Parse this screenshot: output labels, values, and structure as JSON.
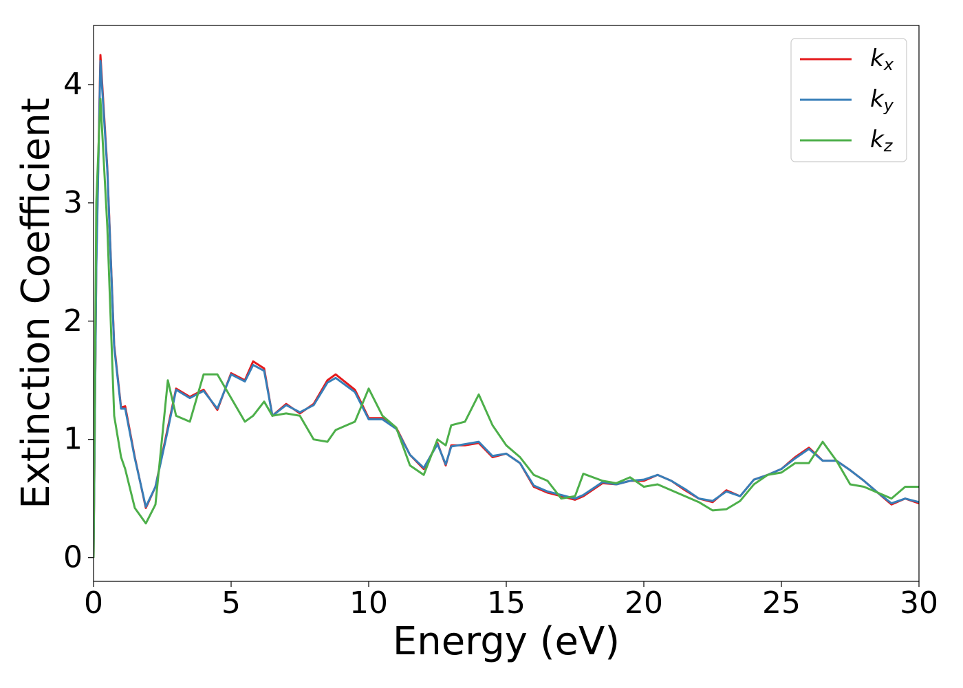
{
  "chart_data": {
    "type": "line",
    "x_label": "Energy (eV)",
    "y_label": "Extinction Coefficient",
    "xlim": [
      0,
      30
    ],
    "ylim": [
      -0.2,
      4.5
    ],
    "xticks": [
      0,
      5,
      10,
      15,
      20,
      25,
      30
    ],
    "yticks": [
      0,
      1,
      2,
      3,
      4
    ],
    "grid": false,
    "legend": "upper right",
    "x": [
      0,
      0.1,
      0.25,
      0.5,
      0.75,
      1.0,
      1.15,
      1.5,
      1.9,
      2.25,
      2.7,
      3.0,
      3.5,
      4.0,
      4.5,
      5.0,
      5.5,
      5.8,
      6.2,
      6.5,
      7.0,
      7.5,
      8.0,
      8.5,
      8.8,
      9.5,
      10.0,
      10.5,
      11.0,
      11.5,
      12.0,
      12.5,
      12.8,
      13.0,
      13.5,
      14.0,
      14.5,
      15.0,
      15.5,
      16.0,
      16.5,
      17.0,
      17.5,
      17.8,
      18.5,
      19.0,
      19.5,
      20.0,
      20.5,
      21.0,
      21.5,
      22.0,
      22.5,
      23.0,
      23.5,
      24.0,
      24.5,
      25.0,
      25.5,
      26.0,
      26.5,
      27.0,
      27.5,
      28.0,
      28.5,
      29.0,
      29.5,
      30.0
    ],
    "series": [
      {
        "name": "kx",
        "color": "#e41a1c",
        "values": [
          0,
          2.5,
          4.25,
          3.3,
          1.8,
          1.27,
          1.28,
          0.85,
          0.42,
          0.6,
          1.1,
          1.43,
          1.36,
          1.42,
          1.25,
          1.56,
          1.5,
          1.66,
          1.6,
          1.2,
          1.3,
          1.22,
          1.3,
          1.5,
          1.55,
          1.42,
          1.18,
          1.18,
          1.1,
          0.87,
          0.75,
          0.97,
          0.78,
          0.95,
          0.95,
          0.97,
          0.85,
          0.88,
          0.8,
          0.6,
          0.55,
          0.52,
          0.49,
          0.52,
          0.63,
          0.62,
          0.65,
          0.65,
          0.7,
          0.65,
          0.57,
          0.5,
          0.47,
          0.57,
          0.52,
          0.66,
          0.7,
          0.75,
          0.85,
          0.93,
          0.82,
          0.82,
          0.74,
          0.65,
          0.55,
          0.45,
          0.5,
          0.46
        ]
      },
      {
        "name": "ky",
        "color": "#377eb8",
        "values": [
          0,
          2.45,
          4.2,
          3.28,
          1.78,
          1.26,
          1.26,
          0.84,
          0.43,
          0.6,
          1.08,
          1.42,
          1.35,
          1.41,
          1.26,
          1.55,
          1.49,
          1.63,
          1.58,
          1.2,
          1.29,
          1.23,
          1.29,
          1.48,
          1.52,
          1.4,
          1.17,
          1.17,
          1.09,
          0.87,
          0.76,
          0.96,
          0.79,
          0.94,
          0.96,
          0.98,
          0.86,
          0.88,
          0.8,
          0.61,
          0.56,
          0.53,
          0.5,
          0.53,
          0.64,
          0.62,
          0.65,
          0.66,
          0.7,
          0.65,
          0.58,
          0.5,
          0.48,
          0.56,
          0.52,
          0.66,
          0.7,
          0.75,
          0.84,
          0.92,
          0.82,
          0.82,
          0.74,
          0.65,
          0.55,
          0.46,
          0.5,
          0.47
        ]
      },
      {
        "name": "kz",
        "color": "#4daf4a",
        "values": [
          0,
          3.0,
          3.88,
          2.8,
          1.2,
          0.85,
          0.75,
          0.42,
          0.29,
          0.45,
          1.5,
          1.2,
          1.15,
          1.55,
          1.55,
          1.35,
          1.15,
          1.2,
          1.32,
          1.2,
          1.22,
          1.2,
          1.0,
          0.98,
          1.08,
          1.15,
          1.43,
          1.2,
          1.1,
          0.78,
          0.7,
          1.0,
          0.95,
          1.12,
          1.15,
          1.38,
          1.12,
          0.95,
          0.85,
          0.7,
          0.65,
          0.5,
          0.52,
          0.71,
          0.65,
          0.63,
          0.68,
          0.6,
          0.62,
          0.57,
          0.52,
          0.47,
          0.4,
          0.41,
          0.48,
          0.62,
          0.7,
          0.72,
          0.8,
          0.8,
          0.98,
          0.82,
          0.62,
          0.6,
          0.55,
          0.5,
          0.6,
          0.6
        ]
      }
    ]
  }
}
